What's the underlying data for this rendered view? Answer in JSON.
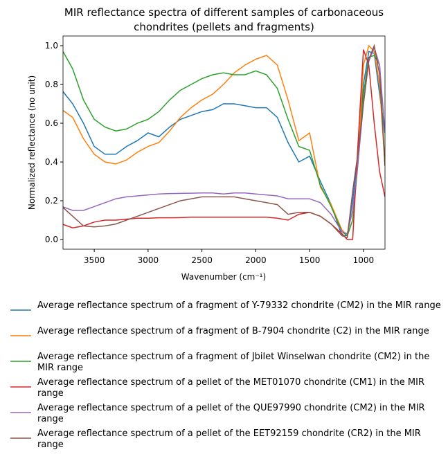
{
  "chart_data": {
    "type": "line",
    "title": "MIR reflectance spectra of different samples of carbonaceous\nchondrites (pellets and fragments)",
    "x_label": "Wavenumber (cm⁻¹)",
    "y_label": "Normalized reflectance (no unit)",
    "xlim": [
      3790,
      800
    ],
    "ylim": [
      -0.05,
      1.05
    ],
    "xticks": [
      3500,
      3000,
      2500,
      2000,
      1500,
      1000
    ],
    "yticks": [
      {
        "value": 0,
        "label": "0.0"
      },
      0.2,
      0.4,
      0.6,
      0.8,
      {
        "value": 1,
        "label": "1.0"
      }
    ],
    "x": [
      3800,
      3700,
      3600,
      3500,
      3400,
      3300,
      3200,
      3100,
      3000,
      2900,
      2800,
      2700,
      2600,
      2500,
      2400,
      2300,
      2200,
      2100,
      2000,
      1900,
      1800,
      1700,
      1600,
      1500,
      1400,
      1300,
      1200,
      1150,
      1100,
      1050,
      1000,
      950,
      900,
      850,
      800
    ],
    "series": [
      {
        "name": "Average reflectance spectrum of a fragment of Y-79332 chondrite (CM2) in the MIR range",
        "color": "#1f77b4",
        "values": [
          0.77,
          0.7,
          0.6,
          0.48,
          0.44,
          0.44,
          0.48,
          0.51,
          0.55,
          0.53,
          0.58,
          0.62,
          0.64,
          0.66,
          0.67,
          0.7,
          0.7,
          0.69,
          0.68,
          0.68,
          0.63,
          0.5,
          0.4,
          0.43,
          0.3,
          0.18,
          0.02,
          0.02,
          0.2,
          0.45,
          0.8,
          0.97,
          0.96,
          0.75,
          0.55
        ]
      },
      {
        "name": "Average reflectance spectrum of a fragment of B-7904 chondrite (C2) in the MIR range",
        "color": "#ff7f0e",
        "values": [
          0.67,
          0.63,
          0.52,
          0.44,
          0.4,
          0.39,
          0.41,
          0.45,
          0.48,
          0.5,
          0.56,
          0.63,
          0.68,
          0.72,
          0.75,
          0.8,
          0.86,
          0.9,
          0.93,
          0.95,
          0.9,
          0.72,
          0.51,
          0.55,
          0.27,
          0.18,
          0.05,
          0.02,
          0.1,
          0.4,
          0.9,
          1.0,
          0.97,
          0.8,
          0.38
        ]
      },
      {
        "name": "Average reflectance spectrum of a fragment of Jbilet Winselwan chondrite (CM2) in the MIR range",
        "color": "#2ca02c",
        "values": [
          0.98,
          0.88,
          0.72,
          0.62,
          0.58,
          0.56,
          0.57,
          0.6,
          0.62,
          0.66,
          0.72,
          0.77,
          0.8,
          0.83,
          0.85,
          0.86,
          0.85,
          0.85,
          0.87,
          0.85,
          0.78,
          0.62,
          0.48,
          0.46,
          0.28,
          0.17,
          0.04,
          0.02,
          0.1,
          0.4,
          0.75,
          0.94,
          0.95,
          0.9,
          0.38
        ]
      },
      {
        "name": "Average reflectance spectrum of a pellet of the MET01070 chondrite (CM1) in the MIR range",
        "color": "#d62728",
        "values": [
          0.08,
          0.06,
          0.07,
          0.09,
          0.1,
          0.1,
          0.105,
          0.11,
          0.11,
          0.112,
          0.112,
          0.113,
          0.115,
          0.115,
          0.115,
          0.115,
          0.115,
          0.115,
          0.115,
          0.115,
          0.11,
          0.1,
          0.13,
          0.14,
          0.12,
          0.08,
          0.03,
          0.0,
          0.0,
          0.5,
          0.98,
          0.9,
          0.6,
          0.35,
          0.22
        ]
      },
      {
        "name": "Average reflectance spectrum of a pellet of the QUE97990 chondrite (CM2) in the MIR range",
        "color": "#9467bd",
        "values": [
          0.17,
          0.15,
          0.15,
          0.17,
          0.19,
          0.21,
          0.22,
          0.225,
          0.23,
          0.235,
          0.237,
          0.238,
          0.239,
          0.24,
          0.24,
          0.235,
          0.24,
          0.24,
          0.235,
          0.23,
          0.225,
          0.21,
          0.21,
          0.21,
          0.19,
          0.13,
          0.04,
          0.03,
          0.15,
          0.4,
          0.7,
          0.92,
          0.99,
          0.9,
          0.55
        ]
      },
      {
        "name": "Average reflectance spectrum of a pellet of the EET92159 chondrite (CR2) in the MIR range",
        "color": "#8c564b",
        "values": [
          0.17,
          0.12,
          0.07,
          0.065,
          0.07,
          0.08,
          0.1,
          0.12,
          0.14,
          0.16,
          0.18,
          0.2,
          0.21,
          0.22,
          0.22,
          0.22,
          0.22,
          0.21,
          0.2,
          0.19,
          0.18,
          0.13,
          0.14,
          0.14,
          0.12,
          0.08,
          0.02,
          0.01,
          0.25,
          0.45,
          0.7,
          0.93,
          1.0,
          0.85,
          0.38
        ]
      }
    ]
  }
}
